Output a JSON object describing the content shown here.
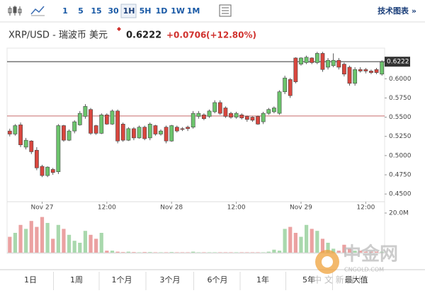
{
  "toolbar": {
    "intervals": [
      "1",
      "5",
      "15",
      "30",
      "1H",
      "5H",
      "1D",
      "1W",
      "1M"
    ],
    "selected_index": 4,
    "link": "技术图表 »"
  },
  "header": {
    "symbol": "XRP/USD - 瑞波币 美元",
    "price": "0.6222",
    "change": "+0.0706",
    "change_percent": "(+12.80%)"
  },
  "chart_data": {
    "type": "candlestick",
    "categories": [
      null,
      null,
      null,
      null,
      null,
      null,
      "Nov 27",
      null,
      null,
      null,
      null,
      null,
      null,
      null,
      null,
      null,
      null,
      null,
      "12:00",
      null,
      null,
      null,
      null,
      null,
      null,
      null,
      null,
      null,
      null,
      null,
      "Nov 28",
      null,
      null,
      null,
      null,
      null,
      null,
      null,
      null,
      null,
      null,
      null,
      "12:00",
      null,
      null,
      null,
      null,
      null,
      null,
      null,
      null,
      null,
      null,
      null,
      "Nov 29",
      null,
      null,
      null,
      null,
      null,
      null,
      null,
      null,
      null,
      null,
      null,
      "12:00",
      null,
      null,
      null
    ],
    "open": [
      0.532,
      0.528,
      0.54,
      0.511,
      0.519,
      0.507,
      0.486,
      0.474,
      0.482,
      0.479,
      0.539,
      0.52,
      0.532,
      0.54,
      0.551,
      0.56,
      0.539,
      0.529,
      0.553,
      0.541,
      0.558,
      0.541,
      0.52,
      0.535,
      0.523,
      0.537,
      0.523,
      0.539,
      0.528,
      0.537,
      0.519,
      0.537,
      0.535,
      0.537,
      0.537,
      0.551,
      0.553,
      0.551,
      0.557,
      0.569,
      0.562,
      0.555,
      0.55,
      0.553,
      0.551,
      0.55,
      0.551,
      0.544,
      0.555,
      0.557,
      0.555,
      0.583,
      0.599,
      0.627,
      0.619,
      0.621,
      0.627,
      0.621,
      0.633,
      0.615,
      0.617,
      0.624,
      0.619,
      0.615,
      0.594,
      0.612,
      0.612,
      0.61,
      0.612,
      0.606
    ],
    "high": [
      0.535,
      0.541,
      0.543,
      0.523,
      0.52,
      0.511,
      0.488,
      0.486,
      0.484,
      0.541,
      0.54,
      0.534,
      0.546,
      0.558,
      0.567,
      0.562,
      0.54,
      0.555,
      0.555,
      0.56,
      0.56,
      0.543,
      0.537,
      0.537,
      0.539,
      0.539,
      0.543,
      0.54,
      0.534,
      0.539,
      0.54,
      0.539,
      0.537,
      0.539,
      0.558,
      0.558,
      0.555,
      0.56,
      0.572,
      0.572,
      0.564,
      0.557,
      0.557,
      0.555,
      0.552,
      0.551,
      0.552,
      0.557,
      0.562,
      0.564,
      0.585,
      0.604,
      0.601,
      0.628,
      0.628,
      0.63,
      0.628,
      0.635,
      0.635,
      0.627,
      0.633,
      0.627,
      0.621,
      0.617,
      0.615,
      0.615,
      0.614,
      0.612,
      0.614,
      0.624
    ],
    "low": [
      0.525,
      0.526,
      0.511,
      0.508,
      0.502,
      0.481,
      0.472,
      0.472,
      0.475,
      0.476,
      0.518,
      0.519,
      0.529,
      0.539,
      0.548,
      0.527,
      0.527,
      0.528,
      0.54,
      0.54,
      0.516,
      0.518,
      0.519,
      0.52,
      0.522,
      0.52,
      0.52,
      0.526,
      0.526,
      0.516,
      0.518,
      0.53,
      0.532,
      0.532,
      0.535,
      0.548,
      0.546,
      0.549,
      0.555,
      0.553,
      0.549,
      0.548,
      0.548,
      0.547,
      0.544,
      0.544,
      0.54,
      0.541,
      0.553,
      0.555,
      0.553,
      0.58,
      0.575,
      0.594,
      0.617,
      0.619,
      0.619,
      0.619,
      0.609,
      0.612,
      0.615,
      0.612,
      0.603,
      0.591,
      0.591,
      0.608,
      0.607,
      0.606,
      0.606,
      0.604
    ],
    "close": [
      0.528,
      0.539,
      0.514,
      0.52,
      0.505,
      0.484,
      0.474,
      0.485,
      0.478,
      0.539,
      0.52,
      0.532,
      0.544,
      0.555,
      0.564,
      0.529,
      0.529,
      0.553,
      0.541,
      0.558,
      0.519,
      0.52,
      0.535,
      0.523,
      0.537,
      0.522,
      0.541,
      0.528,
      0.532,
      0.519,
      0.539,
      0.532,
      0.534,
      0.535,
      0.555,
      0.555,
      0.548,
      0.558,
      0.569,
      0.555,
      0.551,
      0.55,
      0.555,
      0.549,
      0.547,
      0.546,
      0.541,
      0.555,
      0.56,
      0.562,
      0.583,
      0.601,
      0.578,
      0.596,
      0.627,
      0.628,
      0.621,
      0.633,
      0.612,
      0.624,
      0.624,
      0.615,
      0.606,
      0.594,
      0.612,
      0.61,
      0.61,
      0.608,
      0.608,
      0.622
    ],
    "up_color": "#6cc46c",
    "down_color": "#d9463e",
    "ylim": [
      0.44,
      0.638
    ],
    "yticks": [
      {
        "value": 0.45,
        "label": "0.4500"
      },
      {
        "value": 0.475,
        "label": "0.4750"
      },
      {
        "value": 0.5,
        "label": "0.5000"
      },
      {
        "value": 0.525,
        "label": "0.5250"
      },
      {
        "value": 0.55,
        "label": "0.5500"
      },
      {
        "value": 0.575,
        "label": "0.5750"
      },
      {
        "value": 0.6,
        "label": "0.6000"
      }
    ],
    "previous_close": 0.5516,
    "last_price": 0.6222,
    "volume": {
      "values": [
        8,
        10,
        14,
        12,
        16,
        13,
        18,
        15,
        7,
        14,
        12,
        9,
        6,
        5,
        11,
        9,
        7,
        10,
        1,
        1,
        0.5,
        0.3,
        0.5,
        0.3,
        0.2,
        0.3,
        0.3,
        0.2,
        0.2,
        0.2,
        0.3,
        0.2,
        0.2,
        0.2,
        0.5,
        0.2,
        0.2,
        0.2,
        0.2,
        0.2,
        0.2,
        0.2,
        0.2,
        0.2,
        0.2,
        0.2,
        0.2,
        0.2,
        0.5,
        1.5,
        1,
        12,
        13,
        10,
        8,
        14,
        12,
        11,
        7,
        5,
        2,
        1,
        4,
        2,
        1,
        1,
        0.5,
        0.5,
        0.5,
        0.5
      ],
      "up_color": "#a9d8ad",
      "down_color": "#eba1a1",
      "ylim": [
        0,
        20
      ],
      "yticks": [
        {
          "value": 20,
          "label": "20.0M"
        }
      ]
    }
  },
  "range_tabs": [
    "1日",
    "1周",
    "1个月",
    "3个月",
    "6个月",
    "1年",
    "5年",
    "最大值"
  ],
  "watermark": {
    "name": "中金网",
    "site": "CNGOLD.COM",
    "slogan": "中 文 新 媒 体"
  }
}
